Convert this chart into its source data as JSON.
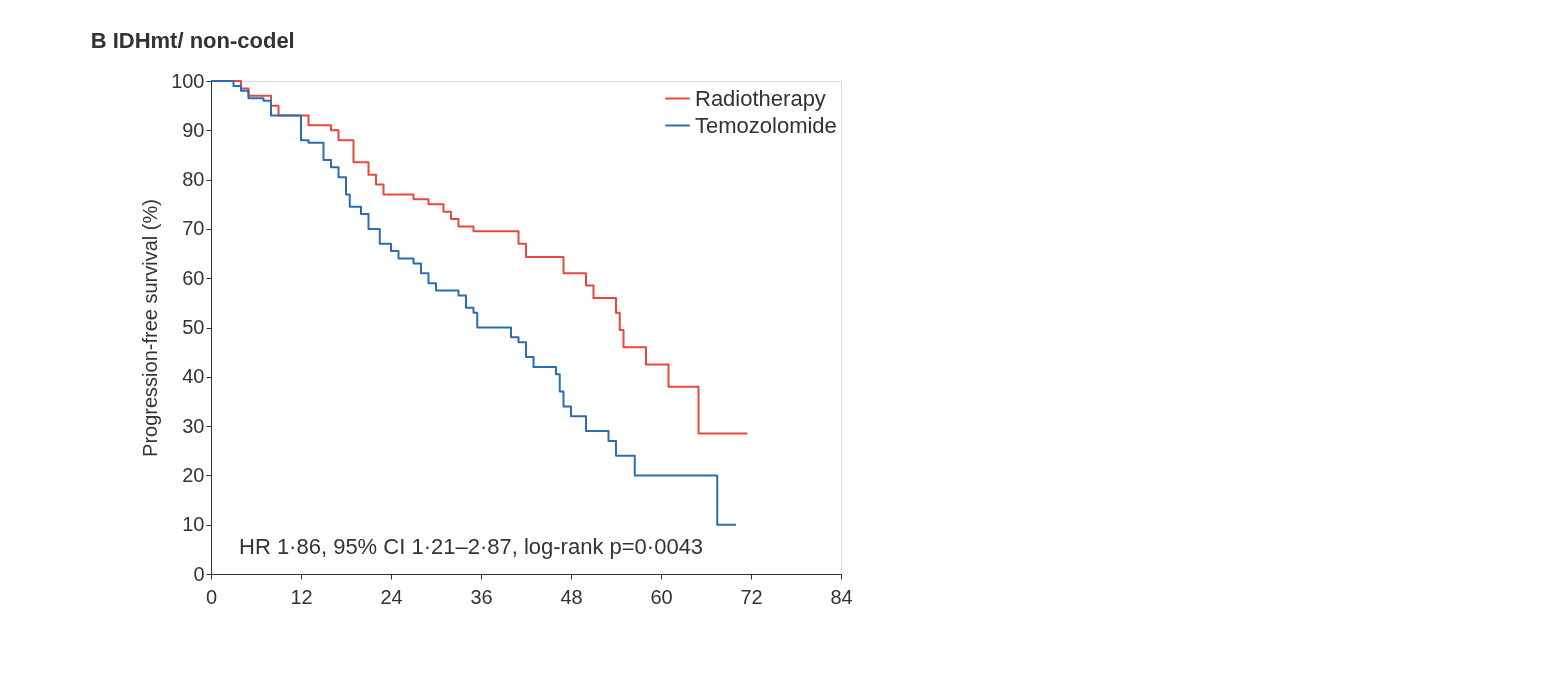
{
  "chart_data": {
    "type": "step",
    "title": "B  IDHmt/ non-codel",
    "xlabel": null,
    "ylabel": "Progression-free survival (%)",
    "xlim": [
      0,
      84
    ],
    "xticks": [
      0,
      12,
      24,
      36,
      48,
      60,
      72,
      84
    ],
    "ylim": [
      0,
      100
    ],
    "yticks": [
      0,
      10,
      20,
      30,
      40,
      50,
      60,
      70,
      80,
      90,
      100
    ],
    "grid": false,
    "legend": "top right",
    "line_style": "solid",
    "marker": "none",
    "annotations": [
      "HR 1·86, 95% CI 1·21–2·87, log-rank p=0·0043"
    ],
    "series": [
      {
        "name": "Radiotherapy",
        "color": "#e8473c",
        "x": [
          0,
          4,
          5,
          8,
          9,
          13,
          16,
          17,
          19,
          21,
          22,
          23,
          27,
          29,
          31,
          32,
          33,
          35,
          41,
          42,
          47,
          50,
          51,
          54,
          54.5,
          55,
          58,
          61,
          65,
          71.5
        ],
        "values": [
          100,
          98.5,
          97,
          95,
          93,
          91,
          90,
          88,
          83.5,
          81,
          79,
          77,
          76,
          75,
          73.5,
          72,
          70.5,
          69.5,
          67,
          64.3,
          61,
          58.5,
          56,
          53,
          49.5,
          46,
          42.5,
          38,
          28.5,
          28.5
        ]
      },
      {
        "name": "Temozolomide",
        "color": "#2a6db5",
        "x": [
          0,
          3,
          4,
          5,
          7,
          8,
          12,
          13,
          15,
          16,
          17,
          18,
          18.5,
          20,
          21,
          22.5,
          24,
          25,
          27,
          28,
          29,
          30,
          33,
          34,
          35,
          35.5,
          40,
          41,
          42,
          43,
          46,
          46.5,
          47,
          48,
          50,
          53,
          54,
          56.5,
          67.5,
          70
        ],
        "values": [
          100,
          99,
          98,
          96.5,
          96,
          93,
          88,
          87.5,
          84,
          82.5,
          80.5,
          77,
          74.5,
          73,
          70,
          67,
          65.5,
          64,
          63,
          61,
          59,
          57.5,
          56.5,
          54,
          53,
          50,
          48,
          47,
          44,
          42,
          40.5,
          37,
          34,
          32,
          29,
          27,
          24,
          20,
          10,
          10
        ]
      }
    ]
  }
}
